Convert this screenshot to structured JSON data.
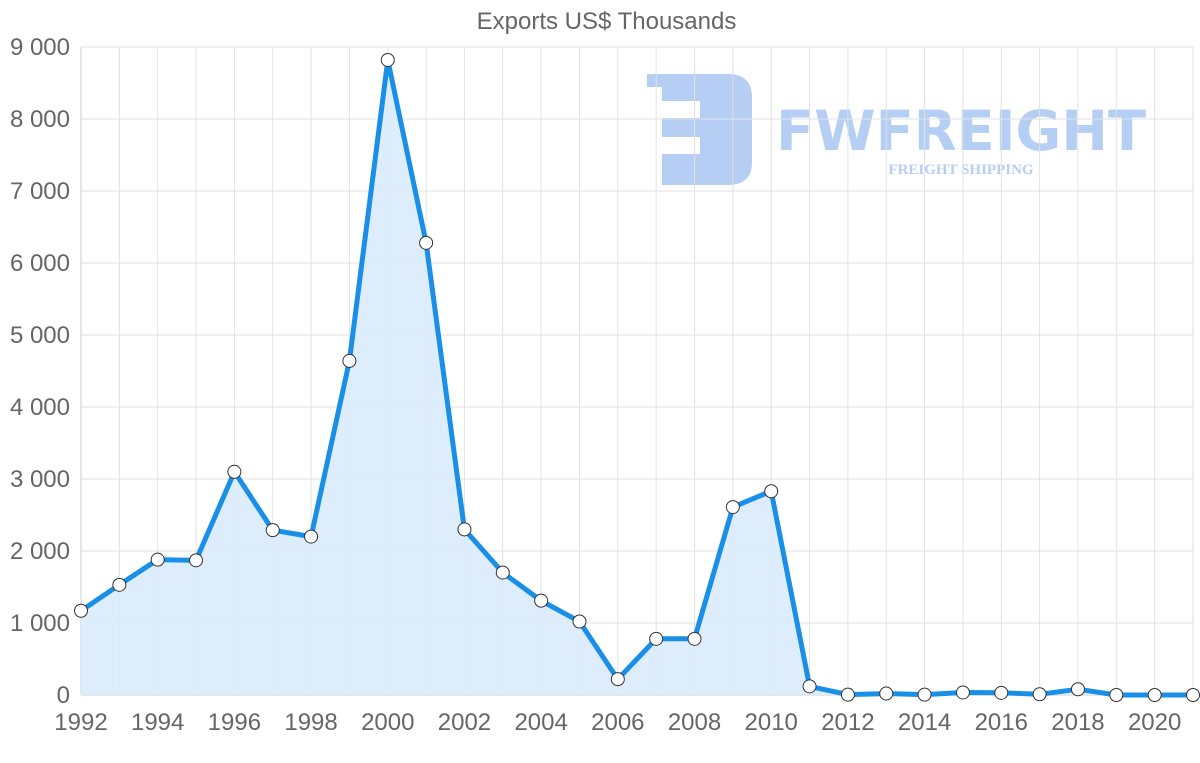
{
  "chart_data": {
    "type": "area",
    "title": "Exports US$ Thousands",
    "xlabel": "",
    "ylabel": "",
    "ylim": [
      0,
      9000
    ],
    "xlim": [
      1992,
      2021
    ],
    "grid": true,
    "legend": null,
    "x": [
      1992,
      1993,
      1994,
      1995,
      1996,
      1997,
      1998,
      1999,
      2000,
      2001,
      2002,
      2003,
      2004,
      2005,
      2006,
      2007,
      2008,
      2009,
      2010,
      2011,
      2012,
      2013,
      2014,
      2015,
      2016,
      2017,
      2018,
      2019,
      2020,
      2021
    ],
    "series": [
      {
        "name": "Exports US$ Thousands",
        "values": [
          1170,
          1530,
          1880,
          1870,
          3100,
          2290,
          2200,
          4640,
          8820,
          6280,
          2300,
          1700,
          1310,
          1020,
          220,
          780,
          780,
          2610,
          2830,
          120,
          5,
          20,
          5,
          35,
          30,
          10,
          80,
          0,
          0,
          0
        ]
      }
    ],
    "y_ticks": [
      "0",
      "1 000",
      "2 000",
      "3 000",
      "4 000",
      "5 000",
      "6 000",
      "7 000",
      "8 000",
      "9 000"
    ],
    "x_ticks": [
      "1992",
      "1994",
      "1996",
      "1998",
      "2000",
      "2002",
      "2004",
      "2006",
      "2008",
      "2010",
      "2012",
      "2014",
      "2016",
      "2018",
      "2020"
    ],
    "colors": {
      "line": "#1a8fe8",
      "fill": "#d9ebfb",
      "marker_fill": "#ffffff",
      "marker_stroke": "#333333"
    }
  },
  "watermark": {
    "brand": "FWFREIGHT",
    "tagline": "FREIGHT SHIPPING",
    "color": "#a9c6f2"
  }
}
